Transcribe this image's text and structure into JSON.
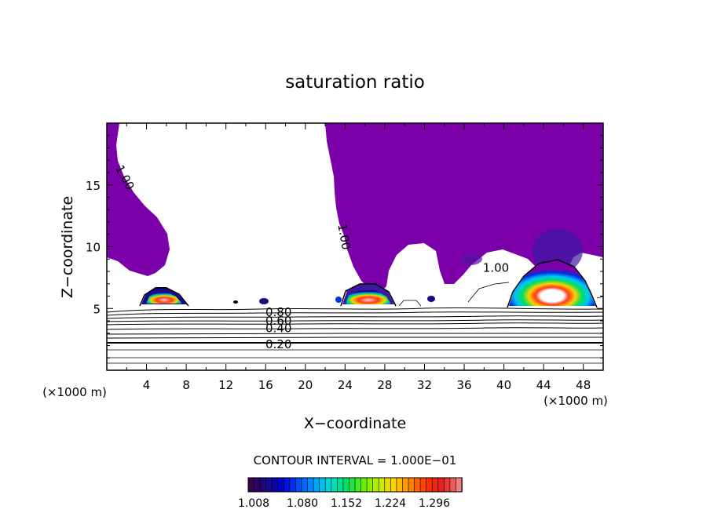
{
  "chart_data": {
    "type": "contour",
    "title": "saturation ratio",
    "xlabel": "X−coordinate",
    "ylabel": "Z−coordinate",
    "x_unit_left": "(×1000 m)",
    "x_unit_right": "(×1000 m)",
    "xlim": [
      0,
      50
    ],
    "ylim": [
      0,
      20
    ],
    "x_ticks": [
      4,
      8,
      12,
      16,
      20,
      24,
      28,
      32,
      36,
      40,
      44,
      48
    ],
    "y_ticks": [
      5,
      10,
      15
    ],
    "contour_labels": [
      {
        "text": "1.00",
        "x": 1.8,
        "z": 15.6,
        "angle": 62
      },
      {
        "text": "1.00",
        "x": 23.9,
        "z": 10.8,
        "angle": 80
      },
      {
        "text": "1.00",
        "x": 39.2,
        "z": 8.3,
        "angle": 0
      },
      {
        "text": "0.80",
        "x": 17.3,
        "z": 4.7,
        "angle": 0
      },
      {
        "text": "0.60",
        "x": 17.3,
        "z": 4.0,
        "angle": 0
      },
      {
        "text": "0.40",
        "x": 17.3,
        "z": 3.4,
        "angle": 0
      },
      {
        "text": "0.20",
        "x": 17.3,
        "z": 2.1,
        "angle": 0
      }
    ],
    "contour_interval_text": "CONTOUR INTERVAL = 1.000E−01",
    "colorbar_ticks": [
      "1.008",
      "1.080",
      "1.152",
      "1.224",
      "1.296"
    ],
    "colorbar_colors": [
      "#3a0050",
      "#1a0a8a",
      "#0000d0",
      "#0050ff",
      "#00a0ff",
      "#00e0d0",
      "#00e060",
      "#60f000",
      "#c0f000",
      "#ffd000",
      "#ff8000",
      "#ff3000",
      "#e02020",
      "#f08080"
    ],
    "colors": {
      "supersaturated": "#7b00aa"
    }
  }
}
